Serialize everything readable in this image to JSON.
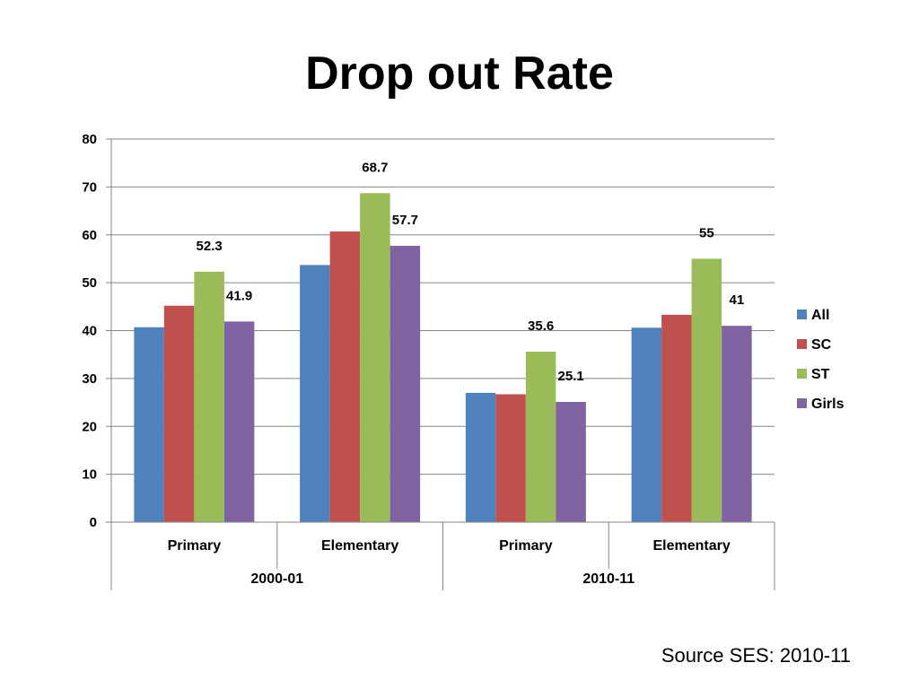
{
  "slide": {
    "title": "Drop out Rate",
    "source": "Source SES: 2010-11"
  },
  "chart_data": {
    "type": "bar",
    "categories": [
      {
        "label": "Primary",
        "group": "2000-01"
      },
      {
        "label": "Elementary",
        "group": "2000-01"
      },
      {
        "label": "Primary",
        "group": "2010-11"
      },
      {
        "label": "Elementary",
        "group": "2010-11"
      }
    ],
    "groups": [
      "2000-01",
      "2010-11"
    ],
    "series": [
      {
        "name": "All",
        "color": "#4F81BD",
        "values": [
          40.7,
          53.7,
          27.0,
          40.6
        ]
      },
      {
        "name": "SC",
        "color": "#C0504D",
        "values": [
          45.2,
          60.7,
          26.7,
          43.3
        ]
      },
      {
        "name": "ST",
        "color": "#9BBB59",
        "values": [
          52.3,
          68.7,
          35.6,
          55
        ]
      },
      {
        "name": "Girls",
        "color": "#8064A2",
        "values": [
          41.9,
          57.7,
          25.1,
          41
        ]
      }
    ],
    "data_labels": [
      {
        "series": 2,
        "category": 0,
        "text": "52.3"
      },
      {
        "series": 3,
        "category": 0,
        "text": "41.9"
      },
      {
        "series": 2,
        "category": 1,
        "text": "68.7"
      },
      {
        "series": 3,
        "category": 1,
        "text": "57.7"
      },
      {
        "series": 2,
        "category": 2,
        "text": "35.6"
      },
      {
        "series": 3,
        "category": 2,
        "text": "25.1"
      },
      {
        "series": 2,
        "category": 3,
        "text": "55"
      },
      {
        "series": 3,
        "category": 3,
        "text": "41"
      }
    ],
    "ylim": [
      0,
      80
    ],
    "yticks": [
      0,
      10,
      20,
      30,
      40,
      50,
      60,
      70,
      80
    ],
    "grid": true,
    "legend_position": "right"
  }
}
